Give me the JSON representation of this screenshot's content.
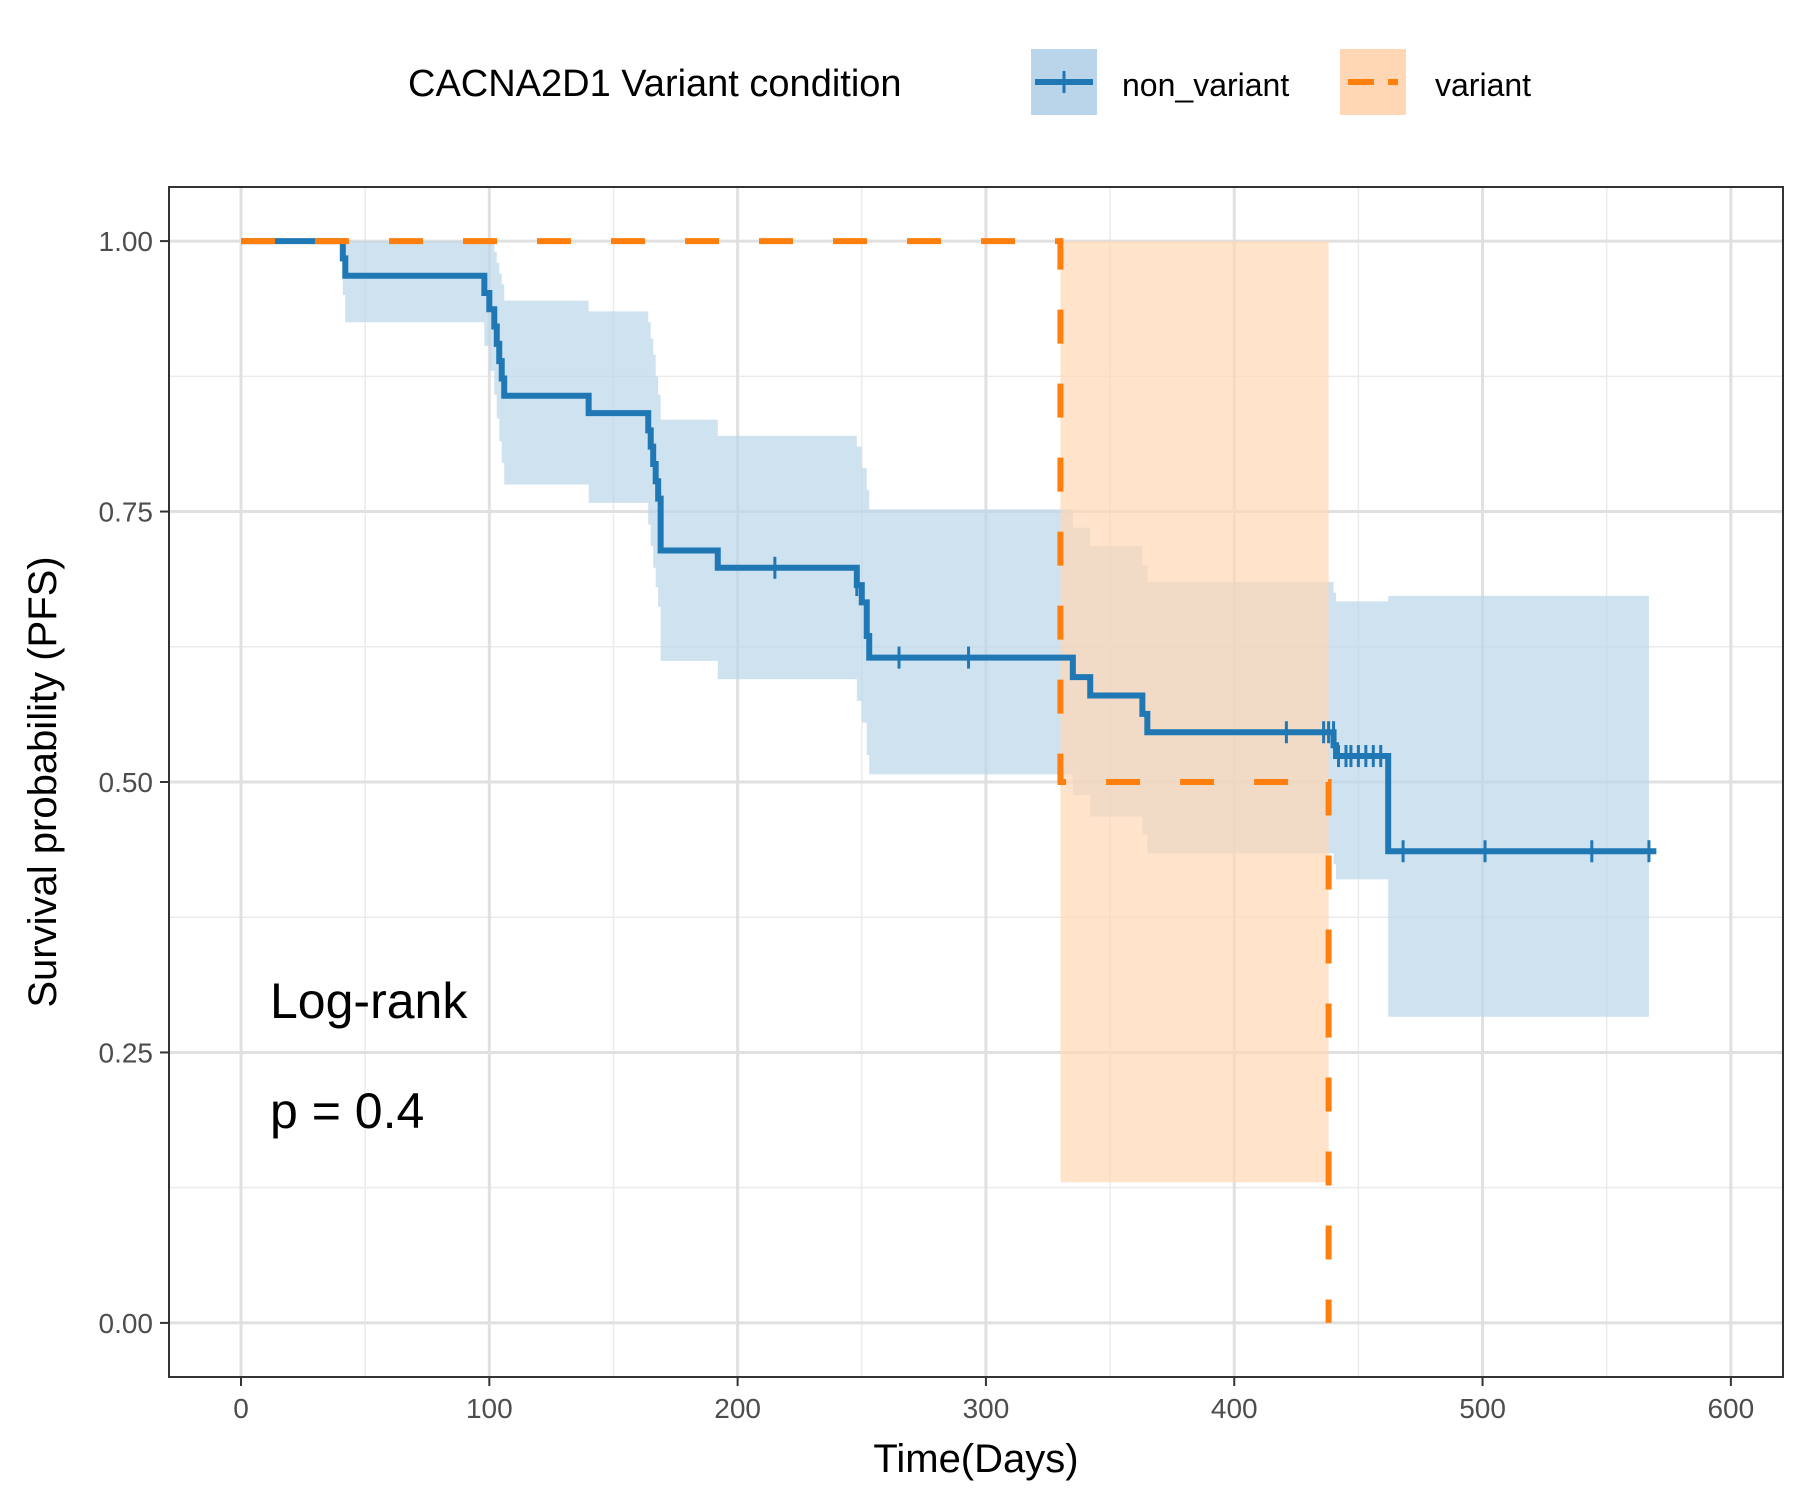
{
  "chart_data": {
    "type": "line",
    "subtype": "kaplan-meier",
    "xlabel": "Time(Days)",
    "ylabel": "Survival probability (PFS)",
    "xlim": [
      -29,
      621
    ],
    "ylim": [
      -0.05,
      1.05
    ],
    "x_ticks": [
      0,
      100,
      200,
      300,
      400,
      500,
      600
    ],
    "x_tick_labels": [
      "0",
      "100",
      "200",
      "300",
      "400",
      "500",
      "600"
    ],
    "y_ticks": [
      0,
      0.25,
      0.5,
      0.75,
      1.0
    ],
    "y_tick_labels": [
      "0.00",
      "0.25",
      "0.50",
      "0.75",
      "1.00"
    ],
    "grid": true,
    "legend": {
      "title": "CACNA2D1 Variant condition",
      "position": "top",
      "entries": [
        "non_variant",
        "variant"
      ]
    },
    "annotation": {
      "line1": "Log-rank",
      "line2": "p = 0.4"
    },
    "series": [
      {
        "name": "non_variant",
        "color": "#1f77b4",
        "fill": "#bad5e9",
        "linestyle": "solid",
        "x": [
          0,
          40,
          41,
          42,
          97,
          98,
          100,
          102,
          103,
          104,
          105,
          106,
          107,
          140,
          163,
          164,
          165,
          166,
          167,
          168,
          169,
          192,
          246,
          248,
          250,
          252,
          253,
          330,
          335,
          342,
          360,
          363,
          365,
          438,
          440,
          441,
          462,
          570
        ],
        "y": [
          1.0,
          1.0,
          0.984,
          0.968,
          0.968,
          0.952,
          0.937,
          0.921,
          0.905,
          0.889,
          0.873,
          0.857,
          0.857,
          0.841,
          0.841,
          0.825,
          0.81,
          0.794,
          0.778,
          0.762,
          0.714,
          0.698,
          0.698,
          0.682,
          0.666,
          0.635,
          0.615,
          0.615,
          0.597,
          0.58,
          0.58,
          0.563,
          0.546,
          0.546,
          0.534,
          0.524,
          0.436,
          0.436
        ],
        "ci_x": [
          0,
          41,
          42,
          97,
          98,
          100,
          102,
          103,
          104,
          105,
          106,
          107,
          140,
          163,
          164,
          165,
          166,
          167,
          168,
          169,
          170,
          192,
          246,
          248,
          250,
          252,
          253,
          330,
          335,
          342,
          360,
          363,
          365,
          438,
          440,
          441,
          462,
          567
        ],
        "ci_lower": [
          1.0,
          0.95,
          0.925,
          0.925,
          0.903,
          0.88,
          0.858,
          0.836,
          0.815,
          0.795,
          0.775,
          0.775,
          0.758,
          0.758,
          0.738,
          0.718,
          0.698,
          0.68,
          0.662,
          0.612,
          0.612,
          0.595,
          0.595,
          0.575,
          0.555,
          0.525,
          0.507,
          0.507,
          0.488,
          0.468,
          0.468,
          0.451,
          0.434,
          0.434,
          0.424,
          0.41,
          0.283,
          0.283
        ],
        "ci_upper": [
          1.0,
          1.0,
          1.0,
          1.0,
          1.0,
          1.0,
          0.99,
          0.98,
          0.97,
          0.96,
          0.945,
          0.945,
          0.935,
          0.935,
          0.925,
          0.91,
          0.895,
          0.875,
          0.858,
          0.835,
          0.835,
          0.82,
          0.82,
          0.81,
          0.79,
          0.77,
          0.752,
          0.752,
          0.735,
          0.718,
          0.718,
          0.7,
          0.685,
          0.685,
          0.675,
          0.667,
          0.672,
          0.672
        ],
        "censor_x": [
          215,
          248,
          265,
          293,
          421,
          436,
          438,
          440,
          442,
          445,
          447,
          450,
          453,
          456,
          459,
          468,
          501,
          544,
          567
        ],
        "censor_y": [
          0.698,
          0.682,
          0.615,
          0.615,
          0.546,
          0.546,
          0.546,
          0.546,
          0.524,
          0.524,
          0.524,
          0.524,
          0.524,
          0.524,
          0.524,
          0.436,
          0.436,
          0.436,
          0.436
        ]
      },
      {
        "name": "variant",
        "color": "#ff7f0e",
        "fill": "#ffd7b4",
        "linestyle": "dashed",
        "x": [
          0,
          330,
          330,
          438,
          438
        ],
        "y": [
          1.0,
          1.0,
          0.5,
          0.5,
          0.0
        ],
        "ci_x": [
          330,
          438
        ],
        "ci_lower": [
          0.13,
          0.13
        ],
        "ci_upper": [
          1.0,
          1.0
        ]
      }
    ]
  }
}
